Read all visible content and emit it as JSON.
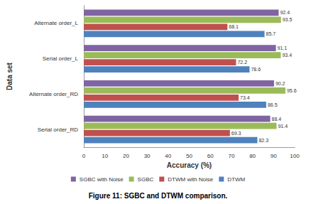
{
  "chart_data": {
    "type": "bar",
    "orientation": "horizontal",
    "title": "Figure 11: SGBC and DTWM comparison.",
    "x_label": "Accuracy (%)",
    "y_label": "Data set",
    "categories": [
      "Serial order_RD",
      "Alternate order_RD",
      "Serial order_L",
      "Alternate order_L"
    ],
    "series": [
      {
        "name": "SGBC with Noise",
        "color": "#8064a2",
        "values": [
          88.4,
          90.2,
          91.1,
          92.4
        ]
      },
      {
        "name": "SGBC",
        "color": "#9bbb59",
        "values": [
          91.4,
          95.6,
          93.4,
          93.5
        ]
      },
      {
        "name": "DTWM with Noise",
        "color": "#c0504d",
        "values": [
          69.3,
          73.4,
          72.2,
          68.1
        ]
      },
      {
        "name": "DTWM",
        "color": "#4f81bd",
        "values": [
          82.3,
          86.5,
          78.6,
          85.7
        ]
      }
    ],
    "xlim": [
      0,
      100
    ],
    "xticks": [
      0,
      10,
      20,
      30,
      40,
      50,
      60,
      70,
      80,
      90,
      100
    ],
    "grid": false,
    "legend": "bottom",
    "data_labels": true
  }
}
